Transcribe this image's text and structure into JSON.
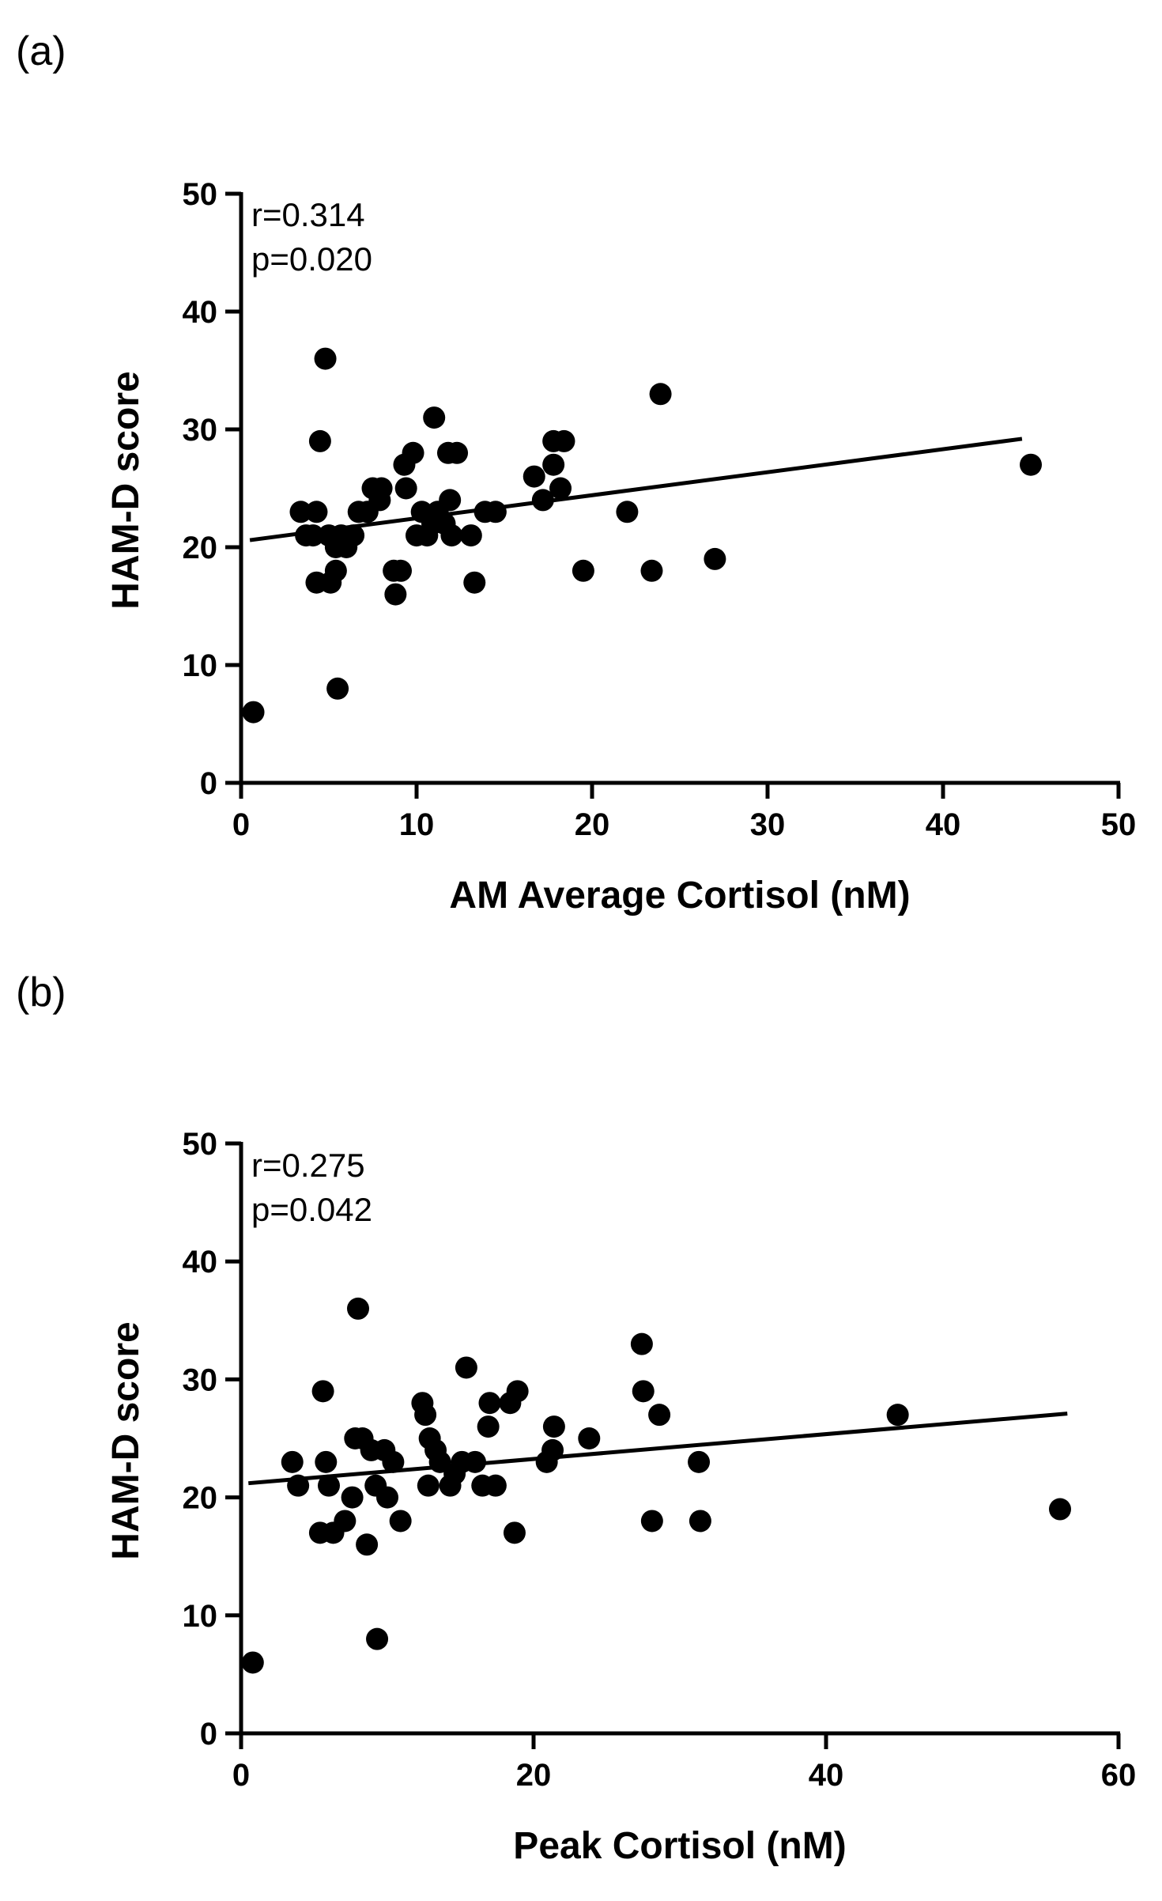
{
  "chart_data": [
    {
      "type": "scatter",
      "panel_label": "(a)",
      "xlabel": "AM Average Cortisol (nM)",
      "ylabel": "HAM-D score",
      "xlim": [
        0,
        50
      ],
      "ylim": [
        0,
        50
      ],
      "xticks": [
        0,
        10,
        20,
        30,
        40,
        50
      ],
      "yticks": [
        0,
        10,
        20,
        30,
        40,
        50
      ],
      "annotations": [
        "r=0.314",
        "p=0.020"
      ],
      "marker_color": "#000000",
      "trend_line": {
        "x": [
          0.5,
          44.5
        ],
        "y": [
          20.6,
          29.2
        ]
      },
      "points": [
        [
          0.7,
          6
        ],
        [
          3.4,
          23
        ],
        [
          3.7,
          21
        ],
        [
          4.1,
          21
        ],
        [
          4.3,
          23
        ],
        [
          4.3,
          17
        ],
        [
          4.5,
          29
        ],
        [
          4.8,
          36
        ],
        [
          5.0,
          21
        ],
        [
          5.1,
          17
        ],
        [
          5.4,
          20
        ],
        [
          5.4,
          18
        ],
        [
          5.5,
          8
        ],
        [
          5.7,
          21
        ],
        [
          6.0,
          20
        ],
        [
          6.4,
          21
        ],
        [
          6.7,
          23
        ],
        [
          7.2,
          23
        ],
        [
          7.5,
          25
        ],
        [
          7.9,
          24
        ],
        [
          8.0,
          25
        ],
        [
          8.7,
          18
        ],
        [
          8.8,
          16
        ],
        [
          9.1,
          18
        ],
        [
          9.3,
          27
        ],
        [
          9.4,
          25
        ],
        [
          9.8,
          28
        ],
        [
          10.0,
          21
        ],
        [
          10.3,
          23
        ],
        [
          10.6,
          21
        ],
        [
          10.9,
          22
        ],
        [
          11.0,
          31
        ],
        [
          11.2,
          23
        ],
        [
          11.6,
          22
        ],
        [
          11.8,
          28
        ],
        [
          11.9,
          24
        ],
        [
          12.0,
          21
        ],
        [
          12.3,
          28
        ],
        [
          13.1,
          21
        ],
        [
          13.3,
          17
        ],
        [
          13.9,
          23
        ],
        [
          14.5,
          23
        ],
        [
          16.7,
          26
        ],
        [
          17.2,
          24
        ],
        [
          17.8,
          27
        ],
        [
          17.8,
          29
        ],
        [
          18.2,
          25
        ],
        [
          18.4,
          29
        ],
        [
          19.5,
          18
        ],
        [
          22.0,
          23
        ],
        [
          23.4,
          18
        ],
        [
          23.9,
          33
        ],
        [
          27.0,
          19
        ],
        [
          45.0,
          27
        ]
      ]
    },
    {
      "type": "scatter",
      "panel_label": "(b)",
      "xlabel": "Peak Cortisol (nM)",
      "ylabel": "HAM-D score",
      "xlim": [
        0,
        60
      ],
      "ylim": [
        0,
        50
      ],
      "xticks": [
        0,
        20,
        40,
        60
      ],
      "yticks": [
        0,
        10,
        20,
        30,
        40,
        50
      ],
      "annotations": [
        "r=0.275",
        "p=0.042"
      ],
      "marker_color": "#000000",
      "trend_line": {
        "x": [
          0.5,
          56.5
        ],
        "y": [
          21.2,
          27.1
        ]
      },
      "points": [
        [
          0.8,
          6
        ],
        [
          3.5,
          23
        ],
        [
          3.9,
          21
        ],
        [
          5.4,
          17
        ],
        [
          5.6,
          29
        ],
        [
          5.8,
          23
        ],
        [
          6.0,
          21
        ],
        [
          6.3,
          17
        ],
        [
          7.1,
          18
        ],
        [
          7.6,
          20
        ],
        [
          7.8,
          25
        ],
        [
          8.0,
          36
        ],
        [
          8.3,
          25
        ],
        [
          8.6,
          16
        ],
        [
          8.9,
          24
        ],
        [
          9.2,
          21
        ],
        [
          9.3,
          8
        ],
        [
          9.8,
          24
        ],
        [
          10.0,
          20
        ],
        [
          10.4,
          23
        ],
        [
          10.9,
          18
        ],
        [
          12.4,
          28
        ],
        [
          12.6,
          27
        ],
        [
          12.8,
          21
        ],
        [
          12.9,
          25
        ],
        [
          13.3,
          24
        ],
        [
          13.6,
          23
        ],
        [
          14.3,
          21
        ],
        [
          14.6,
          22
        ],
        [
          15.1,
          23
        ],
        [
          15.4,
          31
        ],
        [
          16.0,
          23
        ],
        [
          16.5,
          21
        ],
        [
          16.9,
          26
        ],
        [
          17.0,
          28
        ],
        [
          17.4,
          21
        ],
        [
          18.4,
          28
        ],
        [
          18.7,
          17
        ],
        [
          18.9,
          29
        ],
        [
          20.9,
          23
        ],
        [
          21.3,
          24
        ],
        [
          21.4,
          26
        ],
        [
          23.8,
          25
        ],
        [
          27.4,
          33
        ],
        [
          27.5,
          29
        ],
        [
          28.1,
          18
        ],
        [
          28.6,
          27
        ],
        [
          31.3,
          23
        ],
        [
          31.4,
          18
        ],
        [
          44.9,
          27
        ],
        [
          56.0,
          19
        ]
      ]
    }
  ]
}
